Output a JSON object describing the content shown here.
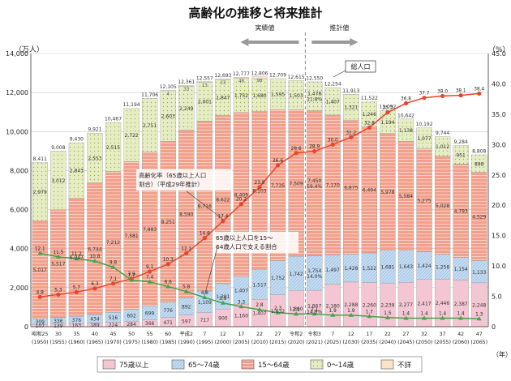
{
  "chart_data": {
    "type": "bar",
    "title": "高齢化の推移と将来推計",
    "left_axis_unit": "（万人）",
    "right_axis_unit": "（%）",
    "x_axis_unit": "（年）",
    "left_ylim": [
      0,
      14000
    ],
    "left_ticks": [
      "0",
      "2,000",
      "4,000",
      "6,000",
      "8,000",
      "10,000",
      "12,000",
      "14,000"
    ],
    "right_ylim": [
      0,
      45
    ],
    "right_ticks": [
      "0",
      "5.0",
      "10.0",
      "15.0",
      "20.0",
      "25.0",
      "30.0",
      "35.0",
      "40.0",
      "45.0"
    ],
    "actual_label": "実績値",
    "estimate_label": "推計値",
    "era_labels": [
      [
        "昭和25",
        "(1950)"
      ],
      [
        "30",
        "(1955)"
      ],
      [
        "35",
        "(1960)"
      ],
      [
        "40",
        "(1965)"
      ],
      [
        "45",
        "(1970)"
      ],
      [
        "50",
        "(1975)"
      ],
      [
        "55",
        "(1980)"
      ],
      [
        "60",
        "(1985)"
      ],
      [
        "平成2",
        "(1990)"
      ],
      [
        "7",
        "(1995)"
      ],
      [
        "12",
        "(2000)"
      ],
      [
        "17",
        "(2005)"
      ],
      [
        "22",
        "(2010)"
      ],
      [
        "27",
        "(2015)"
      ],
      [
        "令和2",
        "(2020)"
      ],
      [
        "令和3",
        "(2021)"
      ],
      [
        "7",
        "(2025)"
      ],
      [
        "12",
        "(2030)"
      ],
      [
        "17",
        "(2035)"
      ],
      [
        "22",
        "(2040)"
      ],
      [
        "27",
        "(2045)"
      ],
      [
        "32",
        "(2050)"
      ],
      [
        "37",
        "(2055)"
      ],
      [
        "42",
        "(2060)"
      ],
      [
        "47",
        "(2065)"
      ]
    ],
    "totals": [
      8411,
      9008,
      9430,
      9921,
      10467,
      11194,
      11706,
      12105,
      12361,
      12557,
      12693,
      12777,
      12806,
      12709,
      12615,
      12550,
      12254,
      11913,
      11522,
      11092,
      10642,
      10192,
      9744,
      9284,
      8808
    ],
    "totals_labels": [
      "8,411",
      "9,008",
      "9,430",
      "9,921",
      "10,467",
      "11,194",
      "11,706",
      "12,105",
      "12,361",
      "12,557",
      "12,693",
      "12,777",
      "12,806",
      "12,709",
      "12,615",
      "12,550",
      "12,254",
      "11,913",
      "11,522",
      "11,092",
      "10,642",
      "10,192",
      "9,744",
      "9,284",
      "8,808"
    ],
    "legend": [
      "75歳以上",
      "65〜74歳",
      "15〜64歳",
      "0〜14歳",
      "不詳"
    ],
    "colors": {
      "age75": "#f4c6d3",
      "age65": "#c3dbf1",
      "age15": "#f2a08c",
      "age0": "#e6edc4",
      "unknown": "#fbe3c8",
      "line_rate": "#e8452a",
      "line_support": "#43a24a"
    },
    "series": [
      {
        "name": "75歳以上",
        "values": [
          107,
          139,
          163,
          189,
          224,
          284,
          366,
          471,
          597,
          717,
          900,
          1160,
          1407,
          1632,
          1860,
          1867,
          2180,
          2288,
          2260,
          2239,
          2277,
          2417,
          2446,
          2387,
          2248
        ],
        "labels": [
          "107",
          "139",
          "163",
          "189",
          "224",
          "284",
          "366",
          "471",
          "597",
          "717",
          "900",
          "1,160",
          "1,407",
          "1,632",
          "1,860",
          "1,867\n14.9%",
          "2,180",
          "2,288",
          "2,260",
          "2,239",
          "2,277",
          "2,417",
          "2,446",
          "2,387",
          "2,248"
        ]
      },
      {
        "name": "65〜74歳",
        "values": [
          309,
          336,
          376,
          434,
          516,
          602,
          699,
          776,
          892,
          1109,
          1301,
          1407,
          1517,
          1752,
          1742,
          1754,
          1497,
          1428,
          1522,
          1681,
          1643,
          1424,
          1258,
          1154,
          1133
        ],
        "labels": [
          "309",
          "336",
          "376",
          "434",
          "516",
          "602",
          "699",
          "776",
          "892",
          "1,109",
          "1,301",
          "1,407",
          "1,517",
          "1,752",
          "1,742",
          "1,754\n14.0%",
          "1,497",
          "1,428",
          "1,522",
          "1,681",
          "1,643",
          "1,424",
          "1,258",
          "1,154",
          "1,133"
        ]
      },
      {
        "name": "15〜64歳",
        "values": [
          5017,
          5517,
          6047,
          6744,
          7212,
          7581,
          7883,
          8251,
          8590,
          8716,
          8622,
          8409,
          8103,
          7735,
          7509,
          7450,
          7170,
          6875,
          6494,
          5978,
          5584,
          5275,
          5028,
          4793,
          4529
        ],
        "labels": [
          "5,017",
          "5,517",
          "6,047",
          "6,744",
          "7,212",
          "7,581",
          "7,883",
          "8,251",
          "8,590",
          "8,716",
          "8,622",
          "8,409",
          "8,103",
          "7,735",
          "7,509",
          "7,450\n59.4%",
          "7,170",
          "6,875",
          "6,494",
          "5,978",
          "5,584",
          "5,275",
          "5,028",
          "4,793",
          "4,529"
        ]
      },
      {
        "name": "0〜14歳",
        "values": [
          2979,
          3012,
          2843,
          2553,
          2515,
          2722,
          2751,
          2603,
          2249,
          2001,
          1847,
          1752,
          1680,
          1595,
          1503,
          1478,
          1407,
          1321,
          1246,
          1194,
          1138,
          1077,
          1012,
          951,
          898
        ],
        "labels": [
          "2,979",
          "3,012",
          "2,843",
          "2,553",
          "2,515",
          "2,722",
          "2,751",
          "2,603",
          "2,249",
          "2,001",
          "1,847",
          "1,752",
          "1,680",
          "1,595",
          "1,503",
          "1,478\n11.8%",
          "1,407",
          "1,321",
          "1,246",
          "1,194",
          "1,138",
          "1,077",
          "1,012",
          "951",
          "898"
        ]
      },
      {
        "name": "不詳",
        "values": [
          0,
          0,
          0,
          0,
          0,
          0,
          0,
          4,
          33,
          13,
          23,
          48,
          98,
          0,
          0,
          0,
          0,
          0,
          0,
          0,
          0,
          0,
          0,
          0,
          0
        ],
        "labels": [
          "",
          "",
          "",
          "",
          "",
          "",
          "",
          "4",
          "33",
          "13",
          "23",
          "48",
          "98",
          "",
          "",
          "",
          "",
          "",
          "",
          "",
          "",
          "",
          "",
          "",
          ""
        ]
      }
    ],
    "line_series": [
      {
        "name": "高齢化率",
        "values": [
          4.9,
          5.3,
          5.7,
          6.3,
          7.1,
          7.9,
          9.1,
          10.3,
          12.1,
          14.6,
          17.4,
          20.2,
          23.0,
          26.6,
          28.6,
          28.9,
          30.0,
          31.2,
          32.8,
          35.3,
          36.8,
          37.7,
          38.0,
          38.1,
          38.4
        ],
        "labels": [
          "4.9",
          "5.3",
          "5.7",
          "6.3",
          "7.1",
          "7.9",
          "9.1",
          "10.3",
          "12.1",
          "14.6",
          "17.4",
          "20.2",
          "23.0",
          "26.6",
          "28.6",
          "28.9",
          "30.0",
          "31.2",
          "32.8",
          "35.3",
          "36.8",
          "37.7",
          "38.0",
          "38.1",
          "38.4"
        ]
      },
      {
        "name": "65歳以上人口を15〜64歳人口で支える割合",
        "values": [
          12.1,
          11.5,
          11.2,
          10.8,
          9.8,
          7.7,
          7.4,
          6.6,
          5.8,
          4.8,
          3.9,
          3.3,
          2.8,
          2.3,
          2.1,
          2.1,
          1.9,
          1.9,
          1.7,
          1.5,
          1.4,
          1.4,
          1.4,
          1.4,
          1.3
        ],
        "labels": [
          "12.1",
          "11.5",
          "11.2",
          "10.8",
          "9.8",
          "7.7",
          "7.4",
          "6.6",
          "5.8",
          "4.8",
          "3.9",
          "3.3",
          "2.8",
          "2.3",
          "2.1",
          "2.1",
          "1.9",
          "1.9",
          "1.7",
          "1.5",
          "1.4",
          "1.4",
          "1.4",
          "1.4",
          "1.3"
        ]
      }
    ],
    "annotations": {
      "total_label": "総人口",
      "rate_label_lines": [
        "高齢化率（65歳以上人口",
        "割合）（平成29年推計）"
      ],
      "support_label_lines": [
        "65歳以上人口を15〜",
        "64歳人口で支える割合"
      ]
    },
    "grid": true,
    "legend_position": "bottom"
  }
}
